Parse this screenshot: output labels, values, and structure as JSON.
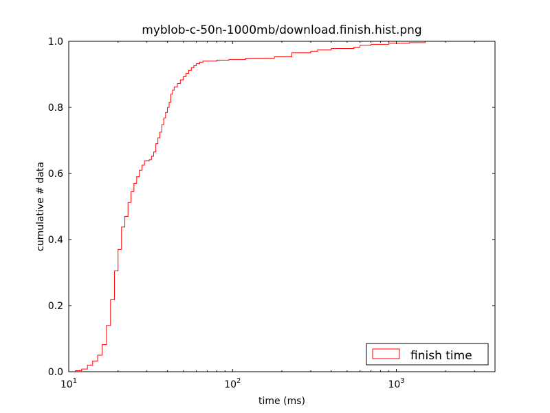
{
  "chart_data": {
    "type": "line",
    "title": "myblob-c-50n-1000mb/download.finish.hist.png",
    "xlabel": "time (ms)",
    "ylabel": "cumulative # data",
    "xscale": "log",
    "xlim": [
      10,
      4000
    ],
    "ylim": [
      0,
      1
    ],
    "xticks": [
      {
        "value": 10,
        "base": "10",
        "exp": "1"
      },
      {
        "value": 100,
        "base": "10",
        "exp": "2"
      },
      {
        "value": 1000,
        "base": "10",
        "exp": "3"
      }
    ],
    "yticks": [
      {
        "value": 0,
        "label": "0.0"
      },
      {
        "value": 0.2,
        "label": "0.2"
      },
      {
        "value": 0.4,
        "label": "0.4"
      },
      {
        "value": 0.6,
        "label": "0.6"
      },
      {
        "value": 0.8,
        "label": "0.8"
      },
      {
        "value": 1,
        "label": "1.0"
      }
    ],
    "grid": false,
    "legend_position": "bottom-right",
    "series": [
      {
        "name": "finish time",
        "color": "#ff0000",
        "step": true,
        "points": [
          [
            11,
            0.0
          ],
          [
            11,
            0.003
          ],
          [
            12,
            0.003
          ],
          [
            12,
            0.008
          ],
          [
            13,
            0.008
          ],
          [
            13,
            0.02
          ],
          [
            14,
            0.02
          ],
          [
            14,
            0.032
          ],
          [
            15,
            0.032
          ],
          [
            15,
            0.05
          ],
          [
            16,
            0.05
          ],
          [
            16,
            0.082
          ],
          [
            17,
            0.082
          ],
          [
            17,
            0.14
          ],
          [
            18,
            0.14
          ],
          [
            18,
            0.218
          ],
          [
            19,
            0.218
          ],
          [
            19,
            0.305
          ],
          [
            20,
            0.305
          ],
          [
            20,
            0.37
          ],
          [
            21,
            0.37
          ],
          [
            21,
            0.438
          ],
          [
            22,
            0.438
          ],
          [
            22,
            0.47
          ],
          [
            23,
            0.47
          ],
          [
            23,
            0.512
          ],
          [
            24,
            0.512
          ],
          [
            24,
            0.545
          ],
          [
            25,
            0.545
          ],
          [
            25,
            0.57
          ],
          [
            26,
            0.57
          ],
          [
            26,
            0.59
          ],
          [
            27,
            0.59
          ],
          [
            27,
            0.61
          ],
          [
            28,
            0.61
          ],
          [
            28,
            0.625
          ],
          [
            29,
            0.625
          ],
          [
            29,
            0.638
          ],
          [
            31,
            0.638
          ],
          [
            31,
            0.642
          ],
          [
            32,
            0.642
          ],
          [
            32,
            0.652
          ],
          [
            33,
            0.652
          ],
          [
            33,
            0.665
          ],
          [
            34,
            0.665
          ],
          [
            34,
            0.69
          ],
          [
            35,
            0.69
          ],
          [
            35,
            0.708
          ],
          [
            36,
            0.708
          ],
          [
            36,
            0.725
          ],
          [
            37,
            0.725
          ],
          [
            37,
            0.748
          ],
          [
            38,
            0.748
          ],
          [
            38,
            0.768
          ],
          [
            39,
            0.768
          ],
          [
            39,
            0.785
          ],
          [
            40,
            0.785
          ],
          [
            40,
            0.8
          ],
          [
            41,
            0.8
          ],
          [
            41,
            0.815
          ],
          [
            42,
            0.815
          ],
          [
            42,
            0.84
          ],
          [
            43,
            0.84
          ],
          [
            43,
            0.852
          ],
          [
            44,
            0.852
          ],
          [
            44,
            0.862
          ],
          [
            46,
            0.862
          ],
          [
            46,
            0.872
          ],
          [
            48,
            0.872
          ],
          [
            48,
            0.883
          ],
          [
            50,
            0.883
          ],
          [
            50,
            0.893
          ],
          [
            52,
            0.893
          ],
          [
            52,
            0.903
          ],
          [
            54,
            0.903
          ],
          [
            54,
            0.912
          ],
          [
            56,
            0.912
          ],
          [
            56,
            0.92
          ],
          [
            58,
            0.92
          ],
          [
            58,
            0.926
          ],
          [
            60,
            0.926
          ],
          [
            60,
            0.932
          ],
          [
            63,
            0.932
          ],
          [
            63,
            0.937
          ],
          [
            66,
            0.937
          ],
          [
            66,
            0.94
          ],
          [
            80,
            0.94
          ],
          [
            80,
            0.943
          ],
          [
            95,
            0.943
          ],
          [
            95,
            0.945
          ],
          [
            120,
            0.945
          ],
          [
            120,
            0.949
          ],
          [
            180,
            0.949
          ],
          [
            180,
            0.953
          ],
          [
            230,
            0.953
          ],
          [
            230,
            0.965
          ],
          [
            300,
            0.965
          ],
          [
            300,
            0.97
          ],
          [
            330,
            0.97
          ],
          [
            330,
            0.974
          ],
          [
            400,
            0.974
          ],
          [
            400,
            0.978
          ],
          [
            550,
            0.978
          ],
          [
            550,
            0.982
          ],
          [
            600,
            0.982
          ],
          [
            600,
            0.988
          ],
          [
            700,
            0.988
          ],
          [
            700,
            0.991
          ],
          [
            900,
            0.991
          ],
          [
            900,
            0.994
          ],
          [
            1200,
            0.994
          ],
          [
            1200,
            0.996
          ],
          [
            1500,
            0.996
          ],
          [
            1500,
            1.0
          ],
          [
            4000,
            1.0
          ]
        ]
      }
    ]
  }
}
